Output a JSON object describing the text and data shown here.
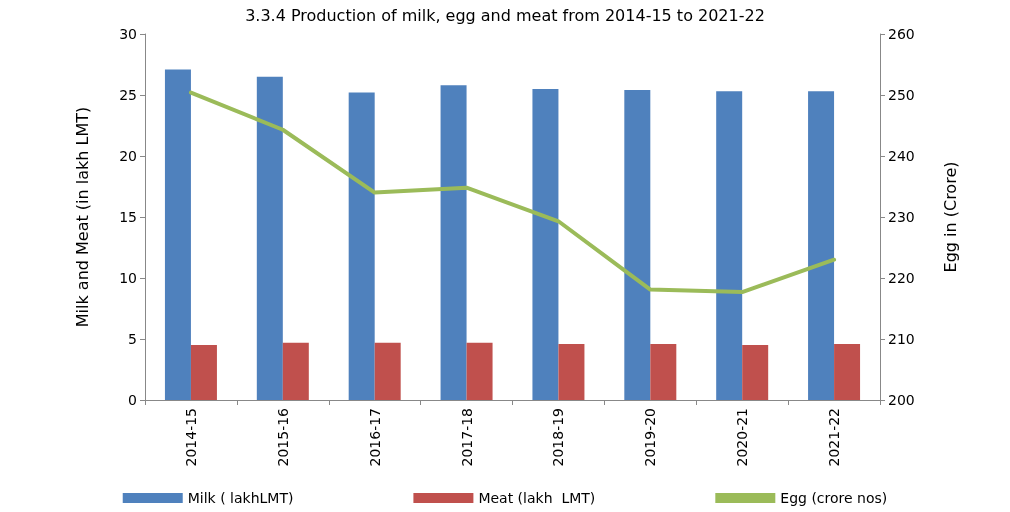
{
  "chart_data": {
    "type": "bar",
    "title": "3.3.4 Production of milk, egg and meat from 2014-15 to 2021-22",
    "ylabel": "Milk and Meat (in lakh LMT)",
    "y2label": "Egg in (Crore)",
    "categories": [
      "2014-15",
      "2015-16",
      "2016-17",
      "2017-18",
      "2018-19",
      "2019-20",
      "2020-21",
      "2021-22"
    ],
    "series": [
      {
        "name": "Milk ( lakhLMT)",
        "color": "#4f81bd",
        "values": [
          27.1,
          26.5,
          25.2,
          25.8,
          25.5,
          25.4,
          25.3,
          25.3
        ]
      },
      {
        "name": "Meat (lakh  LMT)",
        "color": "#c0504d",
        "values": [
          4.5,
          4.7,
          4.7,
          4.7,
          4.6,
          4.6,
          4.5,
          4.6
        ]
      },
      {
        "name": "Egg (crore nos)",
        "type": "line",
        "axis": "y2",
        "color": "#9bbb59",
        "values": [
          250.4,
          244.3,
          234.0,
          234.8,
          229.3,
          218.1,
          217.7,
          223.0
        ]
      }
    ],
    "ylim": [
      0,
      30
    ],
    "yticks": [
      0,
      5,
      10,
      15,
      20,
      25,
      30
    ],
    "y2lim": [
      200,
      260
    ],
    "y2ticks": [
      200,
      210,
      220,
      230,
      240,
      250,
      260
    ],
    "marker": "none",
    "grid": false,
    "legend": "bottom"
  }
}
